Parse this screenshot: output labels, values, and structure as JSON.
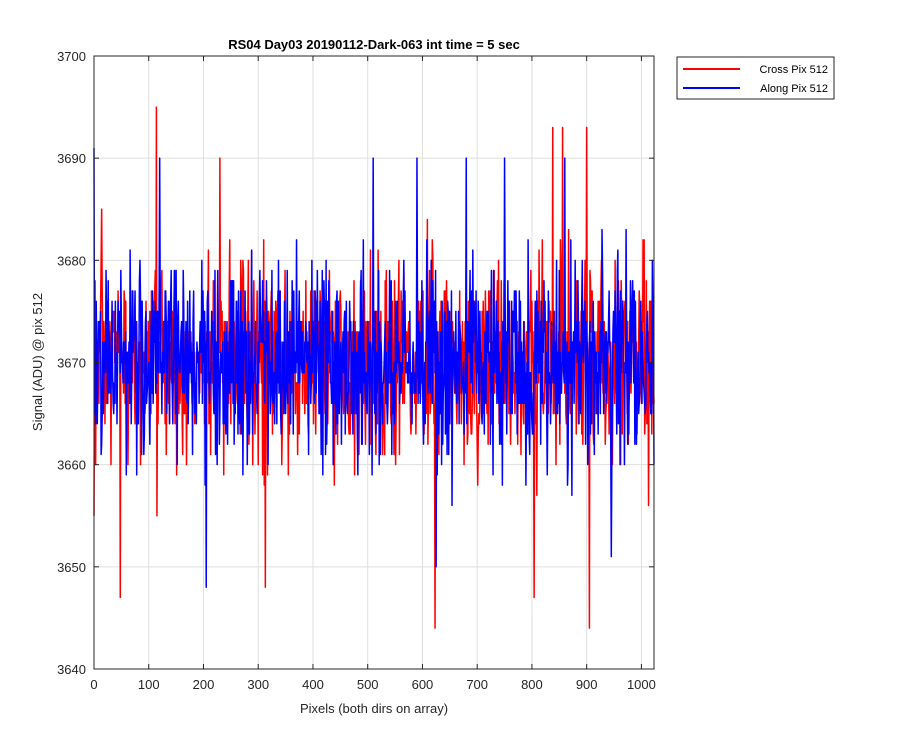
{
  "chart_data": {
    "type": "line",
    "title": "RS04 Day03 20190112-Dark-063 int time = 5 sec",
    "xlabel": "Pixels (both dirs on array)",
    "ylabel": "Signal (ADU) @ pix 512",
    "xlim": [
      0,
      1023
    ],
    "ylim": [
      3640,
      3700
    ],
    "x_ticks": [
      "0",
      "100",
      "200",
      "300",
      "400",
      "500",
      "600",
      "700",
      "800",
      "900",
      "1000"
    ],
    "y_ticks": [
      "3640",
      "3650",
      "3660",
      "3670",
      "3680",
      "3690",
      "3700"
    ],
    "grid": true,
    "legend_position": "top-right outside",
    "series": [
      {
        "name": "Cross Pix 512",
        "color": "#ff0000",
        "mean": 3670,
        "spread": 5,
        "notable_points": [
          {
            "x": 114,
            "y": 3695
          },
          {
            "x": 48,
            "y": 3647
          },
          {
            "x": 313,
            "y": 3648
          },
          {
            "x": 623,
            "y": 3644
          },
          {
            "x": 804,
            "y": 3647
          },
          {
            "x": 905,
            "y": 3644
          },
          {
            "x": 838,
            "y": 3693
          },
          {
            "x": 856,
            "y": 3693
          },
          {
            "x": 900,
            "y": 3693
          },
          {
            "x": 230,
            "y": 3690
          },
          {
            "x": 0,
            "y": 3655
          },
          {
            "x": 1020,
            "y": 3672
          }
        ]
      },
      {
        "name": "Along Pix 512",
        "color": "#0000ff",
        "mean": 3670,
        "spread": 5,
        "notable_points": [
          {
            "x": 0,
            "y": 3691
          },
          {
            "x": 120,
            "y": 3690
          },
          {
            "x": 205,
            "y": 3648
          },
          {
            "x": 510,
            "y": 3690
          },
          {
            "x": 590,
            "y": 3690
          },
          {
            "x": 625,
            "y": 3650
          },
          {
            "x": 680,
            "y": 3690
          },
          {
            "x": 750,
            "y": 3690
          },
          {
            "x": 860,
            "y": 3690
          },
          {
            "x": 945,
            "y": 3651
          },
          {
            "x": 1020,
            "y": 3680
          }
        ]
      }
    ]
  }
}
